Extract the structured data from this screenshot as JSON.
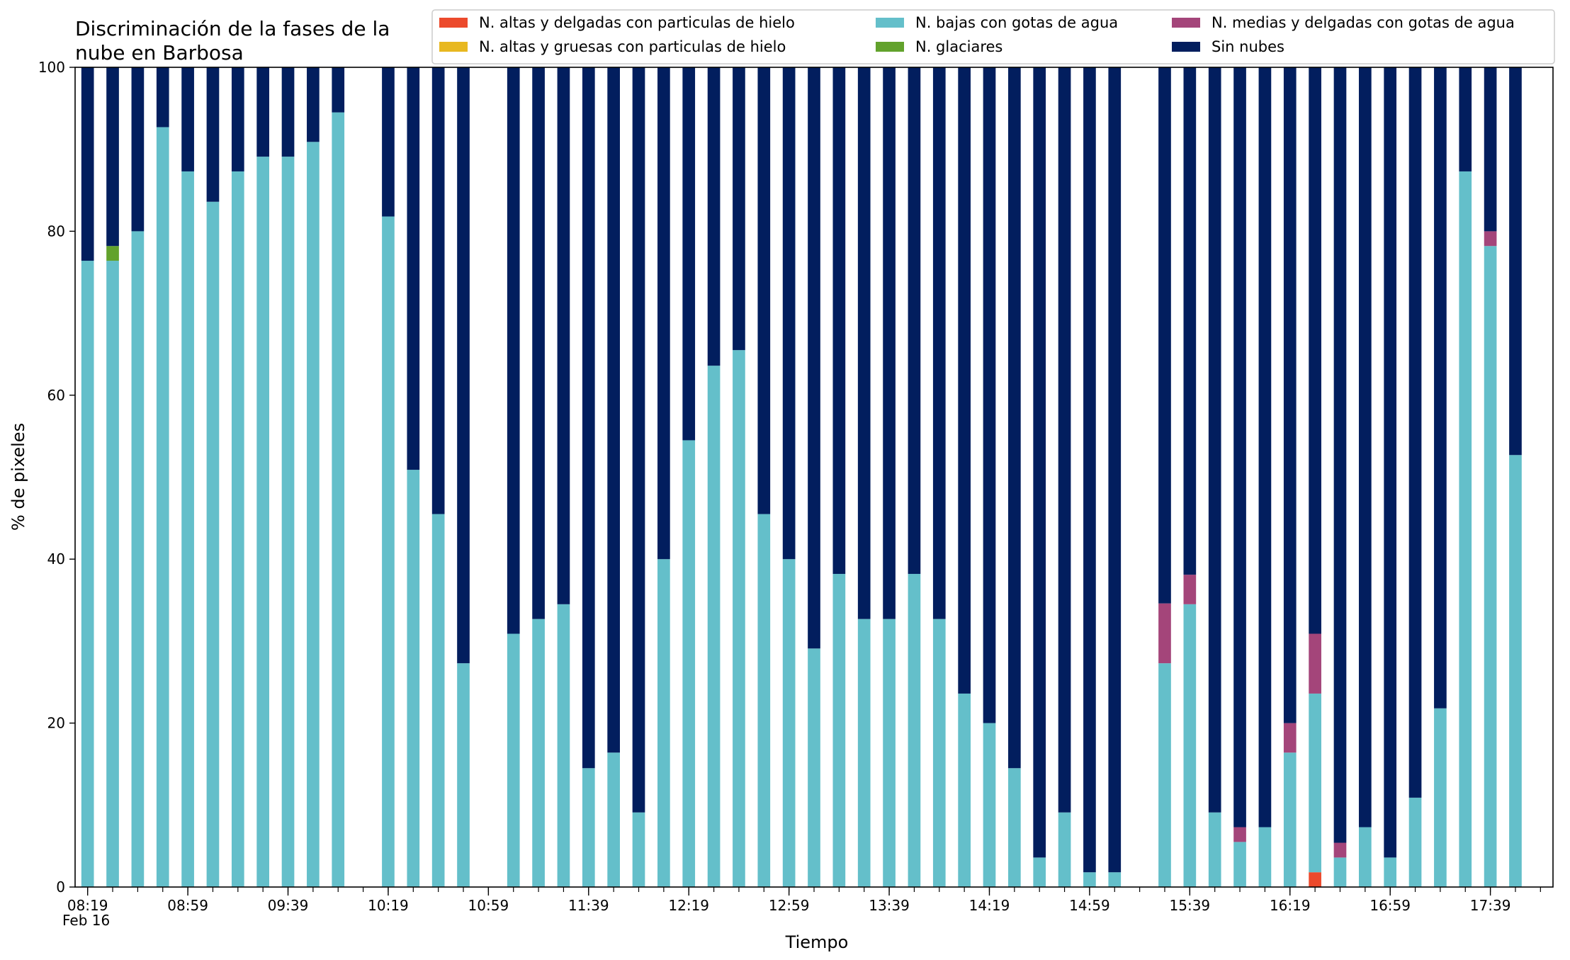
{
  "chart_data": {
    "type": "bar",
    "stacked": true,
    "title": "Discriminación de la fases de la nube en Barbosa",
    "title_lines": [
      "Discriminación de la fases de la",
      "nube en Barbosa"
    ],
    "xlabel": "Tiempo",
    "ylabel": "% de pixeles",
    "ylim": [
      0,
      100
    ],
    "yticks": [
      0,
      20,
      40,
      60,
      80,
      100
    ],
    "grid": false,
    "legend_position": "top-right",
    "date_label": "Feb 16",
    "x_start": "08:19",
    "x_end": "17:59",
    "x_step_minutes": 10,
    "x_tick_labels": [
      "08:19",
      "08:59",
      "09:39",
      "10:19",
      "10:59",
      "11:39",
      "12:19",
      "12:59",
      "13:39",
      "14:19",
      "14:59",
      "15:39",
      "16:19",
      "16:59",
      "17:39"
    ],
    "x": [
      "08:19",
      "08:29",
      "08:39",
      "08:49",
      "08:59",
      "09:09",
      "09:19",
      "09:29",
      "09:39",
      "09:49",
      "09:59",
      "10:09",
      "10:19",
      "10:29",
      "10:39",
      "10:49",
      "10:59",
      "11:09",
      "11:19",
      "11:29",
      "11:39",
      "11:49",
      "11:59",
      "12:09",
      "12:19",
      "12:29",
      "12:39",
      "12:49",
      "12:59",
      "13:09",
      "13:19",
      "13:29",
      "13:39",
      "13:49",
      "13:59",
      "14:09",
      "14:19",
      "14:29",
      "14:39",
      "14:49",
      "14:59",
      "15:09",
      "15:19",
      "15:29",
      "15:39",
      "15:49",
      "15:59",
      "16:09",
      "16:19",
      "16:29",
      "16:39",
      "16:49",
      "16:59",
      "17:09",
      "17:19",
      "17:29",
      "17:39",
      "17:49",
      "17:59"
    ],
    "series": [
      {
        "name": "N. altas y delgadas con particulas de hielo",
        "color": "#ec4a2c",
        "values": [
          0,
          0,
          0,
          0,
          0,
          0,
          0,
          0,
          0,
          0,
          0,
          0,
          0,
          0,
          0,
          0,
          0,
          0,
          0,
          0,
          0,
          0,
          0,
          0,
          0,
          0,
          0,
          0,
          0,
          0,
          0,
          0,
          0,
          0,
          0,
          0,
          0,
          0,
          0,
          0,
          0,
          0,
          0,
          0,
          0,
          0,
          0,
          0,
          0,
          1.8,
          0,
          0,
          0,
          0,
          0,
          0,
          0,
          0,
          0
        ]
      },
      {
        "name": "N. altas y gruesas con particulas de hielo",
        "color": "#e8b820",
        "values": [
          0,
          0,
          0,
          0,
          0,
          0,
          0,
          0,
          0,
          0,
          0,
          0,
          0,
          0,
          0,
          0,
          0,
          0,
          0,
          0,
          0,
          0,
          0,
          0,
          0,
          0,
          0,
          0,
          0,
          0,
          0,
          0,
          0,
          0,
          0,
          0,
          0,
          0,
          0,
          0,
          0,
          0,
          0,
          0,
          0,
          0,
          0,
          0,
          0,
          0,
          0,
          0,
          0,
          0,
          0,
          0,
          0,
          0,
          0
        ]
      },
      {
        "name": "N. bajas con gotas de agua",
        "color": "#64bfca",
        "values": [
          76.4,
          76.4,
          80,
          92.7,
          87.3,
          83.6,
          87.3,
          89.1,
          89.1,
          90.9,
          94.5,
          0,
          81.8,
          50.9,
          45.5,
          27.3,
          0,
          30.9,
          32.7,
          34.5,
          14.5,
          16.4,
          9.1,
          40,
          54.5,
          63.6,
          65.5,
          45.5,
          40,
          29.1,
          38.2,
          32.7,
          32.7,
          38.2,
          32.7,
          23.6,
          20,
          14.5,
          3.6,
          9.1,
          1.8,
          1.8,
          0,
          27.3,
          34.5,
          9.1,
          5.5,
          7.3,
          16.4,
          21.8,
          3.6,
          7.3,
          3.6,
          10.9,
          21.8,
          87.3,
          78.2,
          52.7,
          0
        ]
      },
      {
        "name": "N. glaciares",
        "color": "#62a22c",
        "values": [
          0,
          1.8,
          0,
          0,
          0,
          0,
          0,
          0,
          0,
          0,
          0,
          0,
          0,
          0,
          0,
          0,
          0,
          0,
          0,
          0,
          0,
          0,
          0,
          0,
          0,
          0,
          0,
          0,
          0,
          0,
          0,
          0,
          0,
          0,
          0,
          0,
          0,
          0,
          0,
          0,
          0,
          0,
          0,
          0,
          0,
          0,
          0,
          0,
          0,
          0,
          0,
          0,
          0,
          0,
          0,
          0,
          0,
          0,
          0
        ]
      },
      {
        "name": "N. medias y delgadas con gotas de agua",
        "color": "#a4457a",
        "values": [
          0,
          0,
          0,
          0,
          0,
          0,
          0,
          0,
          0,
          0,
          0,
          0,
          0,
          0,
          0,
          0,
          0,
          0,
          0,
          0,
          0,
          0,
          0,
          0,
          0,
          0,
          0,
          0,
          0,
          0,
          0,
          0,
          0,
          0,
          0,
          0,
          0,
          0,
          0,
          0,
          0,
          0,
          0,
          7.3,
          3.6,
          0,
          1.8,
          0,
          3.6,
          7.3,
          1.8,
          0,
          0,
          0,
          0,
          0,
          1.8,
          0,
          0
        ]
      },
      {
        "name": "Sin nubes",
        "color": "#021e5e",
        "values": [
          23.6,
          21.8,
          20,
          7.3,
          12.7,
          16.4,
          12.7,
          10.9,
          10.9,
          9.1,
          5.5,
          0,
          18.2,
          49.1,
          54.5,
          72.7,
          0,
          69.1,
          67.3,
          65.5,
          85.5,
          83.6,
          90.9,
          60,
          45.5,
          36.4,
          34.5,
          54.5,
          60,
          70.9,
          61.8,
          67.3,
          67.3,
          61.8,
          67.3,
          76.4,
          80,
          85.5,
          96.4,
          90.9,
          98.2,
          98.2,
          0,
          65.4,
          61.9,
          90.9,
          92.7,
          92.7,
          80,
          69.1,
          94.6,
          92.7,
          96.4,
          89.1,
          78.2,
          12.7,
          20,
          47.3,
          0
        ]
      }
    ],
    "legend_columns": [
      [
        "N. altas y delgadas con particulas de hielo",
        "N. altas y gruesas con particulas de hielo"
      ],
      [
        "N. bajas con gotas de agua",
        "N. glaciares"
      ],
      [
        "N. medias y delgadas con gotas de agua",
        "Sin nubes"
      ]
    ]
  }
}
